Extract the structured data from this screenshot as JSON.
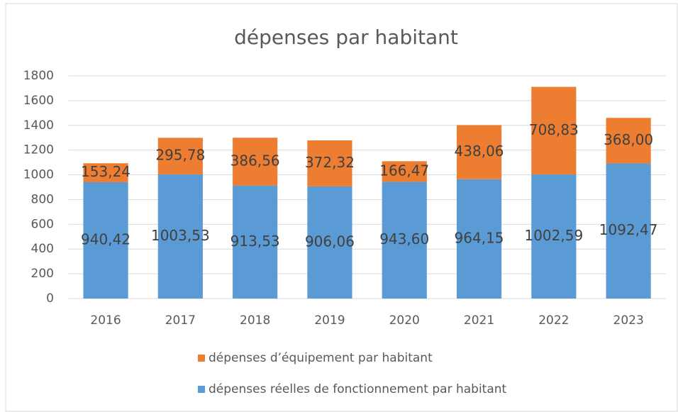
{
  "chart_data": {
    "type": "stacked_bar",
    "title": "dépenses par habitant",
    "categories": [
      "2016",
      "2017",
      "2018",
      "2019",
      "2020",
      "2021",
      "2022",
      "2023"
    ],
    "series": [
      {
        "name": "dépenses réelles de fonctionnement par habitant",
        "color": "#5b9bd5",
        "values": [
          940.42,
          1003.53,
          913.53,
          906.06,
          943.6,
          964.15,
          1002.59,
          1092.47
        ],
        "value_labels": [
          "940,42",
          "1003,53",
          "913,53",
          "906,06",
          "943,60",
          "964,15",
          "1002,59",
          "1092,47"
        ]
      },
      {
        "name": "dépenses d’équipement par habitant",
        "color": "#ed7d31",
        "values": [
          153.24,
          295.78,
          386.56,
          372.32,
          166.47,
          438.06,
          708.83,
          368.0
        ],
        "value_labels": [
          "153,24",
          "295,78",
          "386,56",
          "372,32",
          "166,47",
          "438,06",
          "708,83",
          "368,00"
        ]
      }
    ],
    "ylim": [
      0,
      1800
    ],
    "yticks": [
      0,
      200,
      400,
      600,
      800,
      1000,
      1200,
      1400,
      1600,
      1800
    ],
    "grid": true
  }
}
